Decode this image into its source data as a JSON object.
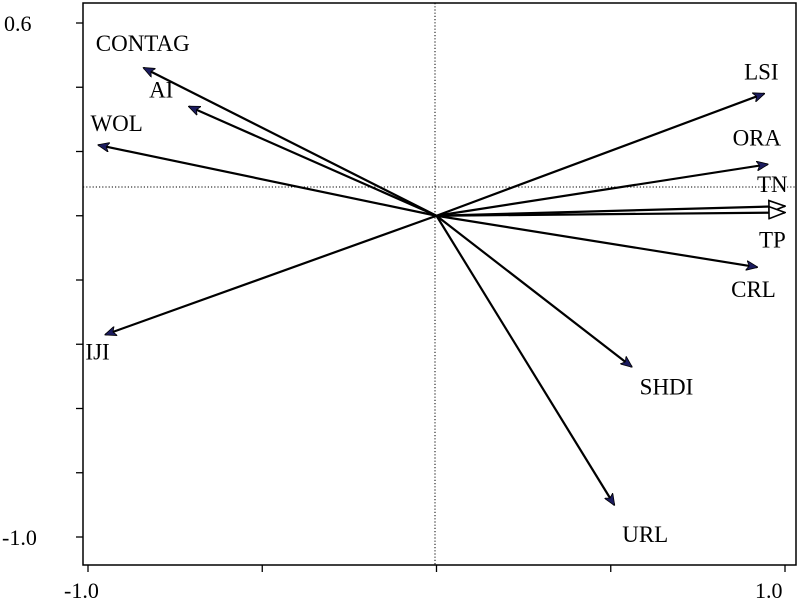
{
  "chart_data": {
    "type": "biplot",
    "xlim": [
      -1.0,
      1.0
    ],
    "ylim": [
      -1.0,
      0.6
    ],
    "x_tick_labels": [
      "-1.0",
      "1.0"
    ],
    "y_tick_labels": [
      "0.6",
      "-1.0"
    ],
    "zero_lines": true,
    "series": [
      {
        "name": "CONTAG",
        "x": -0.84,
        "y": 0.46,
        "head": "filled"
      },
      {
        "name": "AI",
        "x": -0.71,
        "y": 0.34,
        "head": "filled"
      },
      {
        "name": "WOL",
        "x": -0.97,
        "y": 0.22,
        "head": "filled"
      },
      {
        "name": "IJI",
        "x": -0.95,
        "y": -0.37,
        "head": "filled"
      },
      {
        "name": "LSI",
        "x": 0.94,
        "y": 0.38,
        "head": "filled"
      },
      {
        "name": "ORA",
        "x": 0.95,
        "y": 0.16,
        "head": "filled"
      },
      {
        "name": "TN",
        "x": 1.0,
        "y": 0.03,
        "head": "open"
      },
      {
        "name": "TP",
        "x": 1.0,
        "y": 0.01,
        "head": "open"
      },
      {
        "name": "CRL",
        "x": 0.92,
        "y": -0.16,
        "head": "filled"
      },
      {
        "name": "SHDI",
        "x": 0.56,
        "y": -0.47,
        "head": "filled"
      },
      {
        "name": "URL",
        "x": 0.51,
        "y": -0.9,
        "head": "filled"
      }
    ]
  }
}
